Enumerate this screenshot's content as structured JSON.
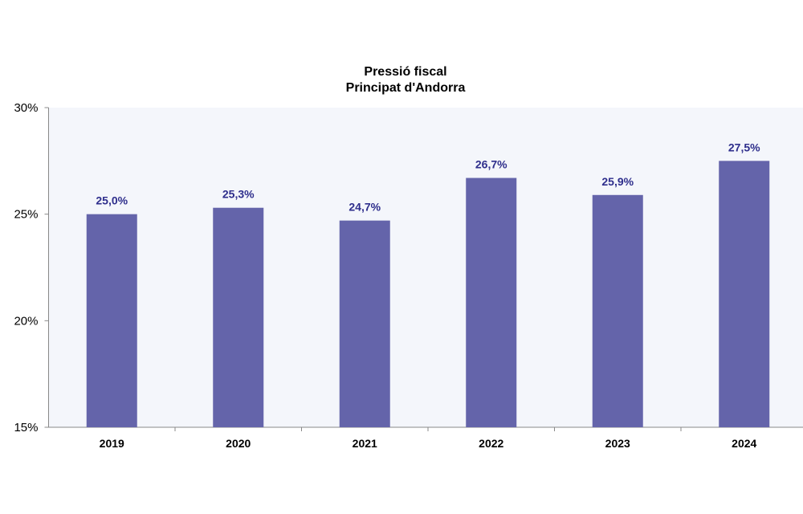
{
  "chart_data": {
    "type": "bar",
    "title": "Pressió fiscal",
    "subtitle": "Principat d'Andorra",
    "categories": [
      "2019",
      "2020",
      "2021",
      "2022",
      "2023",
      "2024"
    ],
    "values": [
      25.0,
      25.3,
      24.7,
      26.7,
      25.9,
      27.5
    ],
    "data_labels": [
      "25,0%",
      "25,3%",
      "24,7%",
      "26,7%",
      "25,9%",
      "27,5%"
    ],
    "xlabel": "",
    "ylabel": "",
    "ylim": [
      15,
      30
    ],
    "yticks": [
      15,
      20,
      25,
      30
    ],
    "ytick_labels": [
      "15%",
      "20%",
      "25%",
      "30%"
    ],
    "grid": false,
    "colors": {
      "bar": "#6464aa",
      "label": "#2e2e8c",
      "plot_bg": "#f4f6fb"
    }
  }
}
